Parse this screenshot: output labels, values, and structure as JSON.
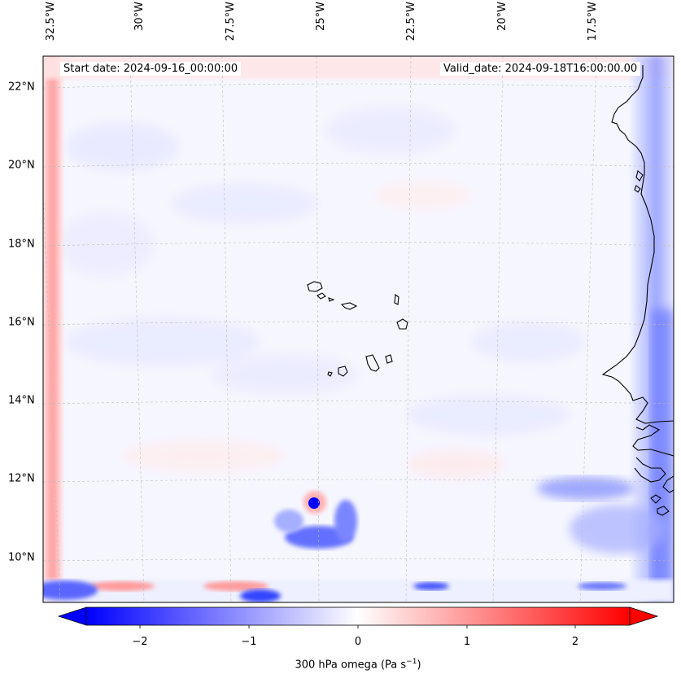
{
  "map": {
    "start_date": "Start date: 2024-09-16_00:00:00",
    "valid_date": "Valid_date: 2024-09-18T16:00:00.00",
    "lon_labels": [
      "32.5°W",
      "30°W",
      "27.5°W",
      "25°W",
      "22.5°W",
      "20°W",
      "17.5°W"
    ],
    "lat_labels": [
      "22°N",
      "20°N",
      "18°N",
      "16°N",
      "14°N",
      "12°N",
      "10°N"
    ]
  },
  "colorbar": {
    "ticks": [
      "−2",
      "−1",
      "0",
      "1",
      "2"
    ],
    "label_main": "300 hPa omega (Pa s",
    "label_exp": "−1",
    "label_close": ")",
    "colors": {
      "min": "#0000ff",
      "mid": "#ffffff",
      "max": "#ff0000"
    }
  }
}
